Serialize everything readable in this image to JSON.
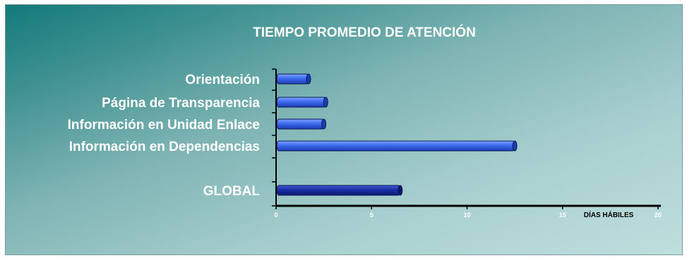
{
  "chart_data": {
    "type": "bar",
    "orientation": "horizontal",
    "title": "TIEMPO PROMEDIO DE ATENCIÓN",
    "categories": [
      "Orientación",
      "Página de Transparencia",
      "Información en Unidad Enlace",
      "Información en Dependencias",
      "GLOBAL"
    ],
    "values": [
      1.7,
      2.6,
      2.5,
      12.5,
      6.5
    ],
    "xlabel": "DÍAS HÁBILES",
    "ylabel": "",
    "xlim": [
      0,
      20
    ],
    "xticks": [
      "0",
      "5",
      "10",
      "15",
      "20"
    ],
    "grid": false,
    "colors": {
      "bar": "#3d6bf0",
      "bar_global": "#1a2fa8",
      "axis": "#000000",
      "text": "#ffffff"
    }
  }
}
